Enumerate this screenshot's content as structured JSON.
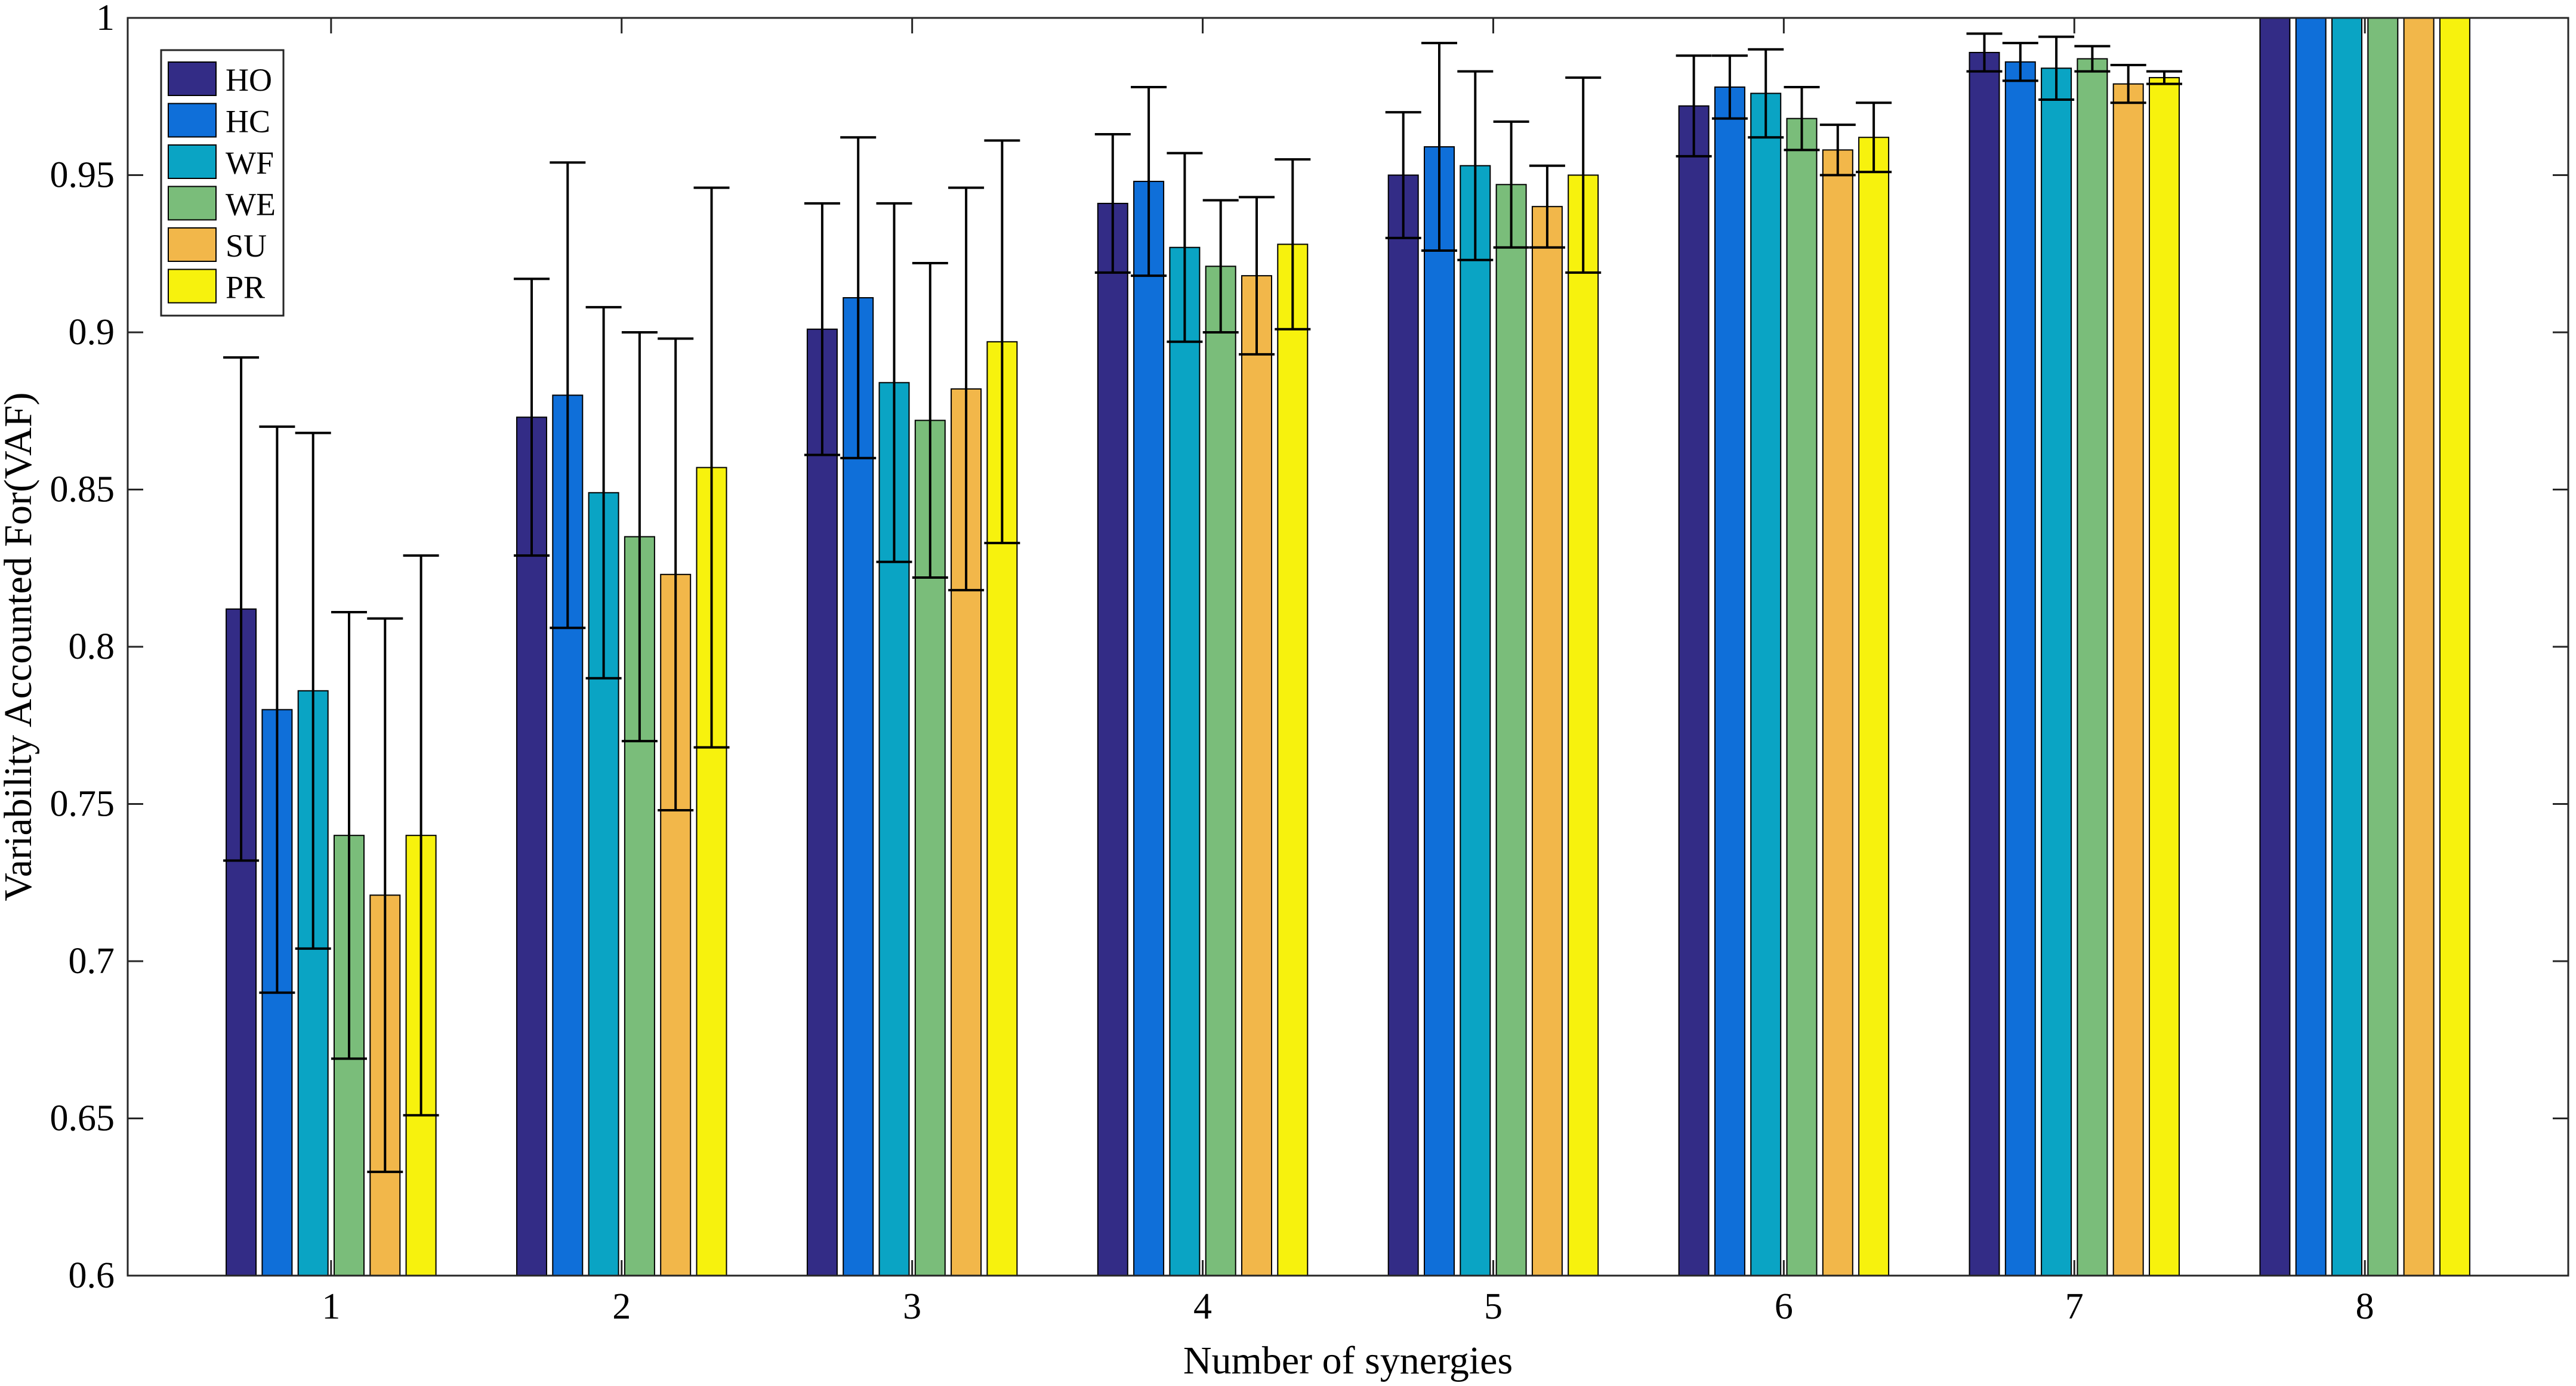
{
  "chart_data": {
    "type": "bar",
    "title": "",
    "xlabel": "Number of synergies",
    "ylabel": "Variability Accounted For(VAF)",
    "ylim": [
      0.6,
      1.0
    ],
    "yticks": [
      0.6,
      0.65,
      0.7,
      0.75,
      0.8,
      0.85,
      0.9,
      0.95,
      1.0
    ],
    "ytick_labels": [
      "0.6",
      "0.65",
      "0.7",
      "0.75",
      "0.8",
      "0.85",
      "0.9",
      "0.95",
      "1"
    ],
    "categories": [
      "1",
      "2",
      "3",
      "4",
      "5",
      "6",
      "7",
      "8"
    ],
    "legend_position": "top-left",
    "grid": false,
    "series": [
      {
        "name": "HO",
        "color": "#332c86",
        "values": [
          0.812,
          0.873,
          0.901,
          0.941,
          0.95,
          0.972,
          0.989,
          1.0
        ],
        "errors": [
          0.08,
          0.044,
          0.04,
          0.022,
          0.02,
          0.016,
          0.006,
          0.0
        ]
      },
      {
        "name": "HC",
        "color": "#0f6fd9",
        "values": [
          0.78,
          0.88,
          0.911,
          0.948,
          0.959,
          0.978,
          0.986,
          1.0
        ],
        "errors": [
          0.09,
          0.074,
          0.051,
          0.03,
          0.033,
          0.01,
          0.006,
          0.0
        ]
      },
      {
        "name": "WF",
        "color": "#0aa4c4",
        "values": [
          0.786,
          0.849,
          0.884,
          0.927,
          0.953,
          0.976,
          0.984,
          1.0
        ],
        "errors": [
          0.082,
          0.059,
          0.057,
          0.03,
          0.03,
          0.014,
          0.01,
          0.0
        ]
      },
      {
        "name": "WE",
        "color": "#7abd7a",
        "values": [
          0.74,
          0.835,
          0.872,
          0.921,
          0.947,
          0.968,
          0.987,
          1.0
        ],
        "errors": [
          0.071,
          0.065,
          0.05,
          0.021,
          0.02,
          0.01,
          0.004,
          0.0
        ]
      },
      {
        "name": "SU",
        "color": "#f2b74a",
        "values": [
          0.721,
          0.823,
          0.882,
          0.918,
          0.94,
          0.958,
          0.979,
          1.0
        ],
        "errors": [
          0.088,
          0.075,
          0.064,
          0.025,
          0.013,
          0.008,
          0.006,
          0.0
        ]
      },
      {
        "name": "PR",
        "color": "#f7f20d",
        "values": [
          0.74,
          0.857,
          0.897,
          0.928,
          0.95,
          0.962,
          0.981,
          1.0
        ],
        "errors": [
          0.089,
          0.089,
          0.064,
          0.027,
          0.031,
          0.011,
          0.002,
          0.0
        ]
      }
    ]
  }
}
